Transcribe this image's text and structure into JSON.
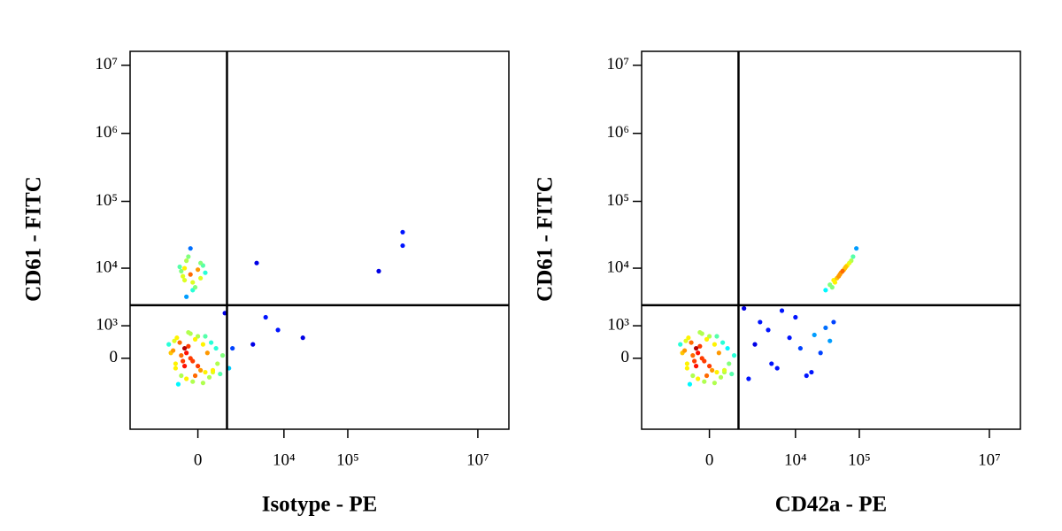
{
  "chart_data": [
    {
      "type": "scatter",
      "xlabel": "Isotype - PE",
      "ylabel": "CD61 - FITC",
      "scale": "biexponential",
      "colormap": "jet",
      "xlim": [
        -5000,
        30000000
      ],
      "ylim": [
        -5000,
        16000000
      ],
      "xticks": [
        0,
        {
          "value": 10000,
          "label": "10⁴"
        },
        {
          "value": 100000,
          "label": "10⁵"
        },
        {
          "value": 10000000,
          "label": "10⁷"
        }
      ],
      "yticks": [
        0,
        {
          "value": 1000,
          "label": "10³"
        },
        {
          "value": 10000,
          "label": "10⁴"
        },
        {
          "value": 100000,
          "label": "10⁵"
        },
        {
          "value": 1000000,
          "label": "10⁶"
        },
        {
          "value": 10000000,
          "label": "10⁷"
        }
      ],
      "gate": {
        "x": 900,
        "y": 2500
      },
      "x": [
        -150,
        -300,
        0,
        -450,
        200,
        -600,
        350,
        -50,
        -250,
        100,
        -700,
        500,
        -400,
        150,
        -200,
        -550,
        300,
        -100,
        50,
        -350,
        -800,
        600,
        -650,
        250,
        -150,
        -500,
        450,
        -300,
        0,
        -250,
        150,
        -100,
        -400,
        350,
        -50,
        -200,
        100,
        -600,
        700,
        -900,
        -150,
        -300,
        50,
        -400,
        -100,
        100,
        -250,
        -50,
        -350,
        0,
        -200,
        150,
        -450,
        -100,
        -300,
        50,
        -150,
        -250,
        3500,
        300000,
        700000,
        700000,
        5000,
        8000,
        20000,
        3000,
        1000,
        1200,
        800
      ],
      "y": [
        0,
        200,
        -150,
        350,
        100,
        -200,
        -300,
        450,
        -500,
        300,
        150,
        -100,
        -400,
        550,
        250,
        500,
        350,
        -600,
        -250,
        -50,
        100,
        -350,
        400,
        -450,
        650,
        -700,
        200,
        -150,
        550,
        100,
        -300,
        -50,
        50,
        -250,
        -400,
        700,
        -650,
        -100,
        50,
        300,
        8000,
        10000,
        7000,
        9000,
        6000,
        11000,
        13000,
        5000,
        7500,
        9500,
        15000,
        8500,
        10500,
        4500,
        6500,
        12000,
        20000,
        3500,
        12000,
        9000,
        22000,
        35000,
        1500,
        800,
        500,
        300,
        -200,
        200,
        1800
      ]
    },
    {
      "type": "scatter",
      "xlabel": "CD42a - PE",
      "ylabel": "CD61 - FITC",
      "scale": "biexponential",
      "colormap": "jet",
      "xlim": [
        -5000,
        30000000
      ],
      "ylim": [
        -5000,
        16000000
      ],
      "xticks": [
        0,
        {
          "value": 10000,
          "label": "10⁴"
        },
        {
          "value": 100000,
          "label": "10⁵"
        },
        {
          "value": 10000000,
          "label": "10⁷"
        }
      ],
      "yticks": [
        0,
        {
          "value": 1000,
          "label": "10³"
        },
        {
          "value": 10000,
          "label": "10⁴"
        },
        {
          "value": 100000,
          "label": "10⁵"
        },
        {
          "value": 1000000,
          "label": "10⁶"
        },
        {
          "value": 10000000,
          "label": "10⁷"
        }
      ],
      "gate": {
        "x": 900,
        "y": 2500
      },
      "x": [
        -150,
        -300,
        0,
        -450,
        200,
        -600,
        350,
        -50,
        -250,
        100,
        -700,
        500,
        -400,
        150,
        -200,
        -550,
        300,
        -100,
        50,
        -350,
        -800,
        600,
        -650,
        250,
        -150,
        -500,
        450,
        -300,
        0,
        -250,
        150,
        -100,
        -400,
        350,
        -50,
        -200,
        100,
        -600,
        700,
        -900,
        50000,
        40000,
        60000,
        35000,
        70000,
        45000,
        55000,
        30000,
        80000,
        65000,
        42000,
        58000,
        38000,
        75000,
        52000,
        90000,
        48000,
        62000,
        2000,
        3500,
        5000,
        8000,
        12000,
        15000,
        20000,
        25000,
        30000,
        40000,
        4000,
        10000,
        18000,
        2500,
        6000,
        35000,
        1500,
        1200
      ],
      "y": [
        0,
        200,
        -150,
        350,
        100,
        -200,
        -300,
        450,
        -500,
        300,
        150,
        -100,
        -400,
        550,
        250,
        500,
        350,
        -600,
        -250,
        -50,
        100,
        -350,
        400,
        -450,
        650,
        -700,
        200,
        -150,
        550,
        100,
        -300,
        -50,
        50,
        -250,
        -400,
        700,
        -650,
        -100,
        50,
        300,
        8000,
        6500,
        10000,
        5500,
        12000,
        7000,
        9000,
        4500,
        15000,
        11000,
        6000,
        9500,
        5000,
        13000,
        8500,
        20000,
        7500,
        10500,
        300,
        800,
        -200,
        500,
        200,
        -400,
        600,
        100,
        900,
        1200,
        -100,
        1500,
        -300,
        1200,
        2000,
        400,
        -500,
        2200
      ]
    }
  ]
}
